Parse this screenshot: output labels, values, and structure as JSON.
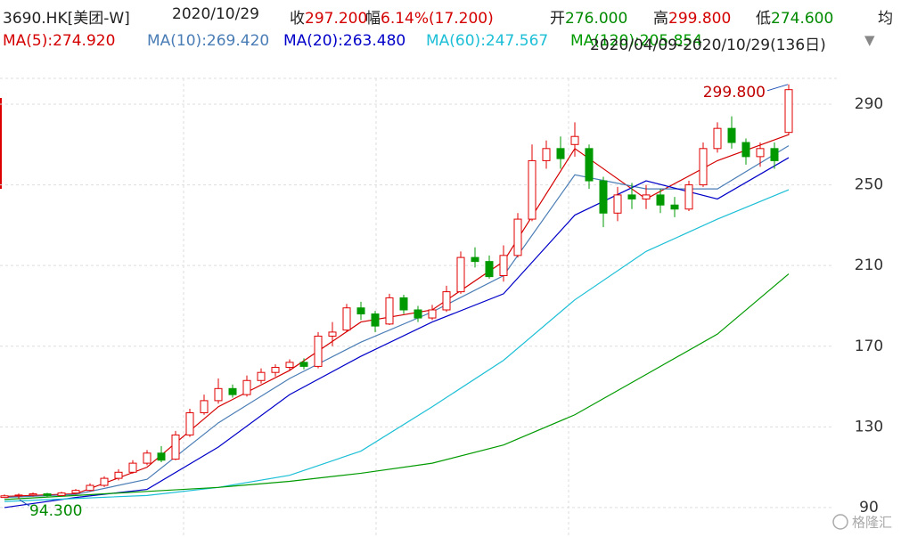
{
  "header": {
    "code": "3690.HK[美团-W]",
    "date": "2020/10/29",
    "items": [
      {
        "label": "收",
        "value": "297.200",
        "color": "#d40000"
      },
      {
        "label": "幅",
        "value": "6.14%(17.200)",
        "color": "#d40000"
      },
      {
        "label": "开",
        "value": "276.000",
        "color": "#008a00"
      },
      {
        "label": "高",
        "value": "299.800",
        "color": "#d40000"
      },
      {
        "label": "低",
        "value": "274.600",
        "color": "#008a00"
      },
      {
        "label": "均"
      }
    ],
    "range": "2020/04/09-2020/10/29(136日)",
    "watermark": "格隆汇"
  },
  "chart_data": {
    "type": "candlestick",
    "open": [
      95.0,
      95.8,
      96.2,
      96.8,
      96.0,
      97.2,
      98.5,
      101.0,
      104.5,
      107.5,
      112.0,
      117.0,
      114.0,
      126.0,
      137.0,
      143.0,
      149.0,
      146.0,
      153.0,
      157.0,
      159.5,
      162.0,
      160.0,
      175.0,
      178.0,
      189.0,
      186.0,
      181.0,
      194.0,
      188.0,
      184.0,
      188.0,
      197.0,
      214.0,
      212.0,
      205.0,
      215.0,
      233.0,
      262.0,
      268.0,
      270.0,
      268.0,
      252.0,
      236.0,
      245.0,
      243.0,
      245.0,
      240.0,
      238.0,
      250.0,
      268.0,
      278.0,
      271.0,
      264.0,
      268.0,
      276.0
    ],
    "close": [
      95.8,
      96.2,
      96.8,
      96.0,
      97.2,
      98.5,
      101.0,
      104.5,
      107.5,
      112.0,
      117.0,
      113.5,
      126.0,
      137.0,
      143.0,
      149.0,
      146.0,
      153.0,
      157.0,
      159.5,
      162.0,
      160.0,
      175.0,
      177.0,
      189.0,
      186.0,
      180.0,
      194.0,
      188.0,
      184.0,
      188.0,
      197.0,
      214.0,
      212.0,
      204.5,
      215.0,
      233.0,
      262.0,
      268.0,
      263.0,
      274.0,
      252.0,
      236.0,
      245.0,
      243.0,
      245.0,
      240.0,
      238.0,
      250.0,
      268.0,
      278.0,
      271.0,
      264.0,
      268.0,
      262.0,
      297.2
    ],
    "low": [
      94.8,
      94.3,
      95.5,
      95.5,
      95.8,
      96.8,
      98.0,
      100.2,
      103.5,
      106.8,
      111.0,
      112.5,
      113.5,
      125.0,
      136.0,
      141.5,
      144.5,
      145.0,
      151.5,
      155.0,
      158.0,
      158.5,
      159.0,
      170.0,
      177.0,
      183.0,
      177.0,
      180.5,
      186.0,
      182.0,
      183.0,
      187.0,
      196.0,
      209.0,
      203.5,
      202.0,
      214.0,
      232.0,
      258.0,
      258.0,
      264.0,
      248.0,
      229.0,
      232.0,
      238.0,
      238.0,
      236.0,
      234.0,
      237.0,
      249.0,
      266.0,
      268.0,
      260.0,
      259.0,
      258.0,
      274.6
    ],
    "high": [
      96.5,
      97.0,
      97.5,
      97.3,
      97.8,
      99.2,
      102.0,
      105.5,
      109.0,
      113.5,
      118.5,
      120.5,
      128.0,
      139.0,
      146.0,
      154.0,
      151.0,
      155.5,
      159.0,
      161.0,
      163.5,
      164.0,
      177.0,
      182.0,
      191.0,
      192.0,
      187.5,
      196.0,
      195.5,
      190.0,
      190.5,
      200.0,
      217.0,
      219.0,
      215.0,
      220.0,
      236.0,
      270.0,
      272.0,
      274.0,
      281.0,
      270.0,
      254.0,
      249.0,
      251.0,
      250.0,
      248.0,
      244.0,
      252.0,
      271.0,
      281.0,
      284.0,
      273.0,
      271.0,
      271.0,
      299.8
    ],
    "up_color": "#e00000",
    "down_color": "#009a00",
    "ma_x": [
      0,
      5,
      10,
      15,
      20,
      25,
      30,
      35,
      40,
      45,
      50,
      55
    ],
    "series": [
      {
        "legend": "MA(5):274.920",
        "color": "#d40000",
        "values": [
          95.5,
          96.8,
          110,
          140,
          158,
          182,
          188,
          212,
          268,
          243,
          262,
          274.92
        ]
      },
      {
        "legend": "MA(10):269.420",
        "color": "#4a7db5",
        "values": [
          95,
          96.5,
          104,
          132,
          154,
          172,
          187,
          205,
          255,
          248,
          248,
          269.42
        ]
      },
      {
        "legend": "MA(20):263.480",
        "color": "#0000c8",
        "values": [
          90,
          95,
          99,
          120,
          146,
          165,
          182,
          196,
          235,
          252,
          243,
          263.48
        ]
      },
      {
        "legend": "MA(60):247.567",
        "color": "#1cbfd6",
        "values": [
          93,
          94.5,
          96,
          100,
          106,
          118,
          140,
          163,
          193,
          217,
          233,
          247.567
        ]
      },
      {
        "legend": "MA(120):205.854",
        "color": "#009a00",
        "values": [
          94,
          96,
          98,
          100,
          103,
          107,
          112,
          121,
          136,
          156,
          176,
          205.854
        ]
      }
    ],
    "annotations": [
      "299.800",
      "94.300"
    ],
    "ylim": [
      75.4,
      302.8
    ],
    "yticks": [
      90,
      130,
      170,
      210,
      250,
      290
    ],
    "grid": true
  }
}
